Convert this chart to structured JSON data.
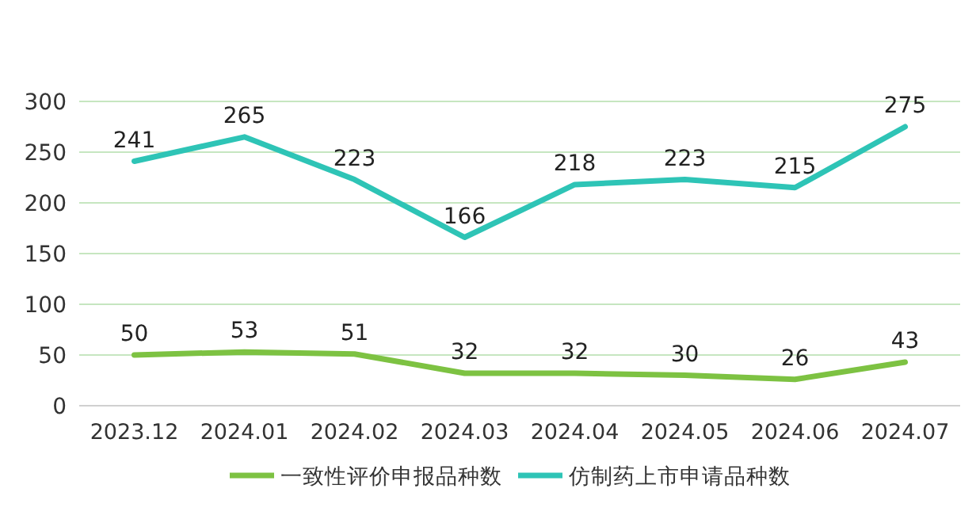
{
  "chart_data": {
    "type": "line",
    "categories": [
      "2023.12",
      "2024.01",
      "2024.02",
      "2024.03",
      "2024.04",
      "2024.05",
      "2024.06",
      "2024.07"
    ],
    "series": [
      {
        "name": "一致性评价申报品种数",
        "color": "#7dc242",
        "values": [
          50,
          53,
          51,
          32,
          32,
          30,
          26,
          43
        ]
      },
      {
        "name": "仿制药上市申请品种数",
        "color": "#2ec4b6",
        "values": [
          241,
          265,
          223,
          166,
          218,
          223,
          215,
          275
        ]
      }
    ],
    "ylim": [
      0,
      300
    ],
    "yticks": [
      0,
      50,
      100,
      150,
      200,
      250,
      300
    ],
    "grid": "y",
    "legend": "bottom",
    "data_labels": true
  }
}
